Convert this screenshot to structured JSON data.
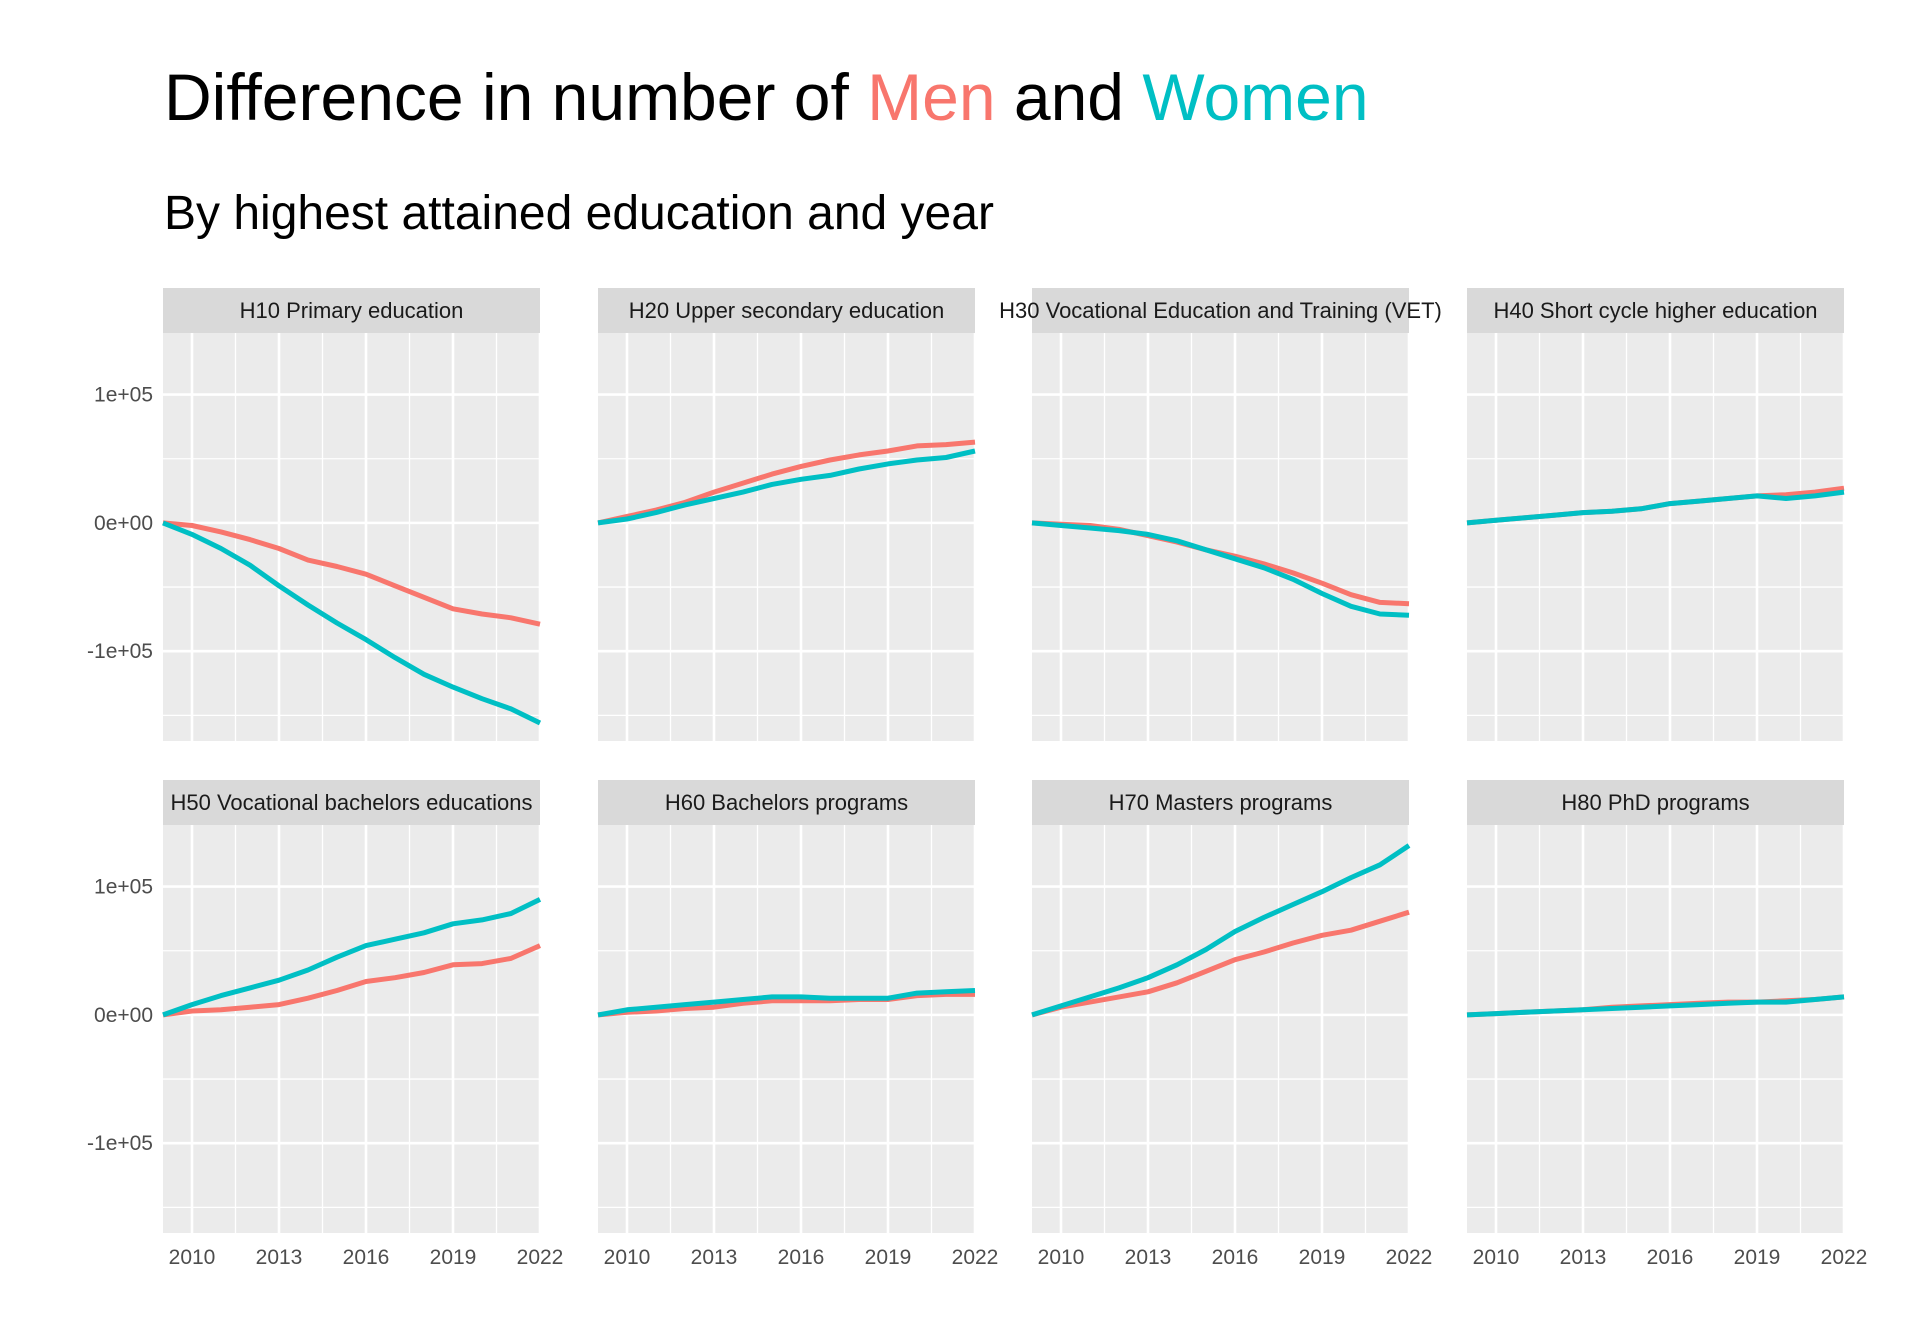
{
  "title": {
    "prefix": "Difference in number of ",
    "men": "Men",
    "middle": " and ",
    "women": "Women"
  },
  "subtitle": "By highest attained education and year",
  "colors": {
    "men": "#F8766D",
    "women": "#00BFC4",
    "panel_bg": "#EBEBEB",
    "strip_bg": "#D9D9D9",
    "grid": "#FFFFFF"
  },
  "chart_data": {
    "type": "line",
    "title": "Difference in number of Men and Women",
    "subtitle": "By highest attained education and year",
    "xlabel": "",
    "ylabel": "",
    "x": [
      2009,
      2010,
      2011,
      2012,
      2013,
      2014,
      2015,
      2016,
      2017,
      2018,
      2019,
      2020,
      2021,
      2022
    ],
    "xlim": [
      2009,
      2022
    ],
    "ylim": [
      -170000,
      148000
    ],
    "x_ticks": [
      2010,
      2013,
      2016,
      2019,
      2022
    ],
    "x_tick_labels": [
      "2010",
      "2013",
      "2016",
      "2019",
      "2022"
    ],
    "y_ticks": [
      100000,
      0,
      -100000
    ],
    "y_tick_labels": [
      "1e+05",
      "0e+00",
      "-1e+05"
    ],
    "grid": true,
    "legend": "none (encoded in title colors)",
    "facets": [
      {
        "label": "H10 Primary education",
        "series": [
          {
            "name": "Men",
            "values": [
              0,
              -2000,
              -7000,
              -13000,
              -20000,
              -29000,
              -34000,
              -40000,
              -49000,
              -58000,
              -67000,
              -71000,
              -74000,
              -79000
            ]
          },
          {
            "name": "Women",
            "values": [
              0,
              -9000,
              -20000,
              -33000,
              -49000,
              -64000,
              -78000,
              -91000,
              -105000,
              -118000,
              -128000,
              -137000,
              -145000,
              -156000
            ]
          }
        ]
      },
      {
        "label": "H20 Upper secondary education",
        "series": [
          {
            "name": "Men",
            "values": [
              0,
              5000,
              10000,
              16000,
              24000,
              31000,
              38000,
              44000,
              49000,
              53000,
              56000,
              60000,
              61000,
              63000
            ]
          },
          {
            "name": "Women",
            "values": [
              0,
              3000,
              8000,
              14000,
              19000,
              24000,
              30000,
              34000,
              37000,
              42000,
              46000,
              49000,
              51000,
              56000
            ]
          }
        ]
      },
      {
        "label": "H30 Vocational Education and Training (VET)",
        "series": [
          {
            "name": "Men",
            "values": [
              0,
              -1000,
              -2000,
              -5000,
              -10000,
              -15000,
              -21000,
              -26000,
              -32000,
              -39000,
              -47000,
              -56000,
              -62000,
              -63000
            ]
          },
          {
            "name": "Women",
            "values": [
              0,
              -2000,
              -4000,
              -6000,
              -9000,
              -14000,
              -21000,
              -28000,
              -35000,
              -44000,
              -55000,
              -65000,
              -71000,
              -72000
            ]
          }
        ]
      },
      {
        "label": "H40 Short cycle higher education",
        "series": [
          {
            "name": "Men",
            "values": [
              0,
              2000,
              4000,
              6000,
              8000,
              9000,
              11000,
              15000,
              17000,
              19000,
              21000,
              22000,
              24000,
              27000
            ]
          },
          {
            "name": "Women",
            "values": [
              0,
              2000,
              4000,
              6000,
              8000,
              9000,
              11000,
              15000,
              17000,
              19000,
              21000,
              19000,
              21000,
              24000
            ]
          }
        ]
      },
      {
        "label": "H50 Vocational bachelors educations",
        "series": [
          {
            "name": "Men",
            "values": [
              0,
              3000,
              4000,
              6000,
              8000,
              13000,
              19000,
              26000,
              29000,
              33000,
              39000,
              40000,
              44000,
              54000
            ]
          },
          {
            "name": "Women",
            "values": [
              0,
              8000,
              15000,
              21000,
              27000,
              35000,
              45000,
              54000,
              59000,
              64000,
              71000,
              74000,
              79000,
              90000
            ]
          }
        ]
      },
      {
        "label": "H60 Bachelors programs",
        "series": [
          {
            "name": "Men",
            "values": [
              0,
              2000,
              3000,
              5000,
              6000,
              9000,
              11000,
              11000,
              11000,
              12000,
              12000,
              15000,
              16000,
              16000
            ]
          },
          {
            "name": "Women",
            "values": [
              0,
              4000,
              6000,
              8000,
              10000,
              12000,
              14000,
              14000,
              13000,
              13000,
              13000,
              17000,
              18000,
              19000
            ]
          }
        ]
      },
      {
        "label": "H70 Masters programs",
        "series": [
          {
            "name": "Men",
            "values": [
              0,
              6000,
              10000,
              14000,
              18000,
              25000,
              34000,
              43000,
              49000,
              56000,
              62000,
              66000,
              73000,
              80000
            ]
          },
          {
            "name": "Women",
            "values": [
              0,
              7000,
              14000,
              21000,
              29000,
              39000,
              51000,
              65000,
              76000,
              86000,
              96000,
              107000,
              117000,
              132000
            ]
          }
        ]
      },
      {
        "label": "H80 PhD programs",
        "series": [
          {
            "name": "Men",
            "values": [
              0,
              1000,
              2000,
              3000,
              4000,
              6000,
              7000,
              8000,
              9000,
              10000,
              10000,
              11000,
              12000,
              14000
            ]
          },
          {
            "name": "Women",
            "values": [
              0,
              1000,
              2000,
              3000,
              4000,
              5000,
              6000,
              7000,
              8000,
              9000,
              10000,
              10000,
              12000,
              14000
            ]
          }
        ]
      }
    ]
  }
}
